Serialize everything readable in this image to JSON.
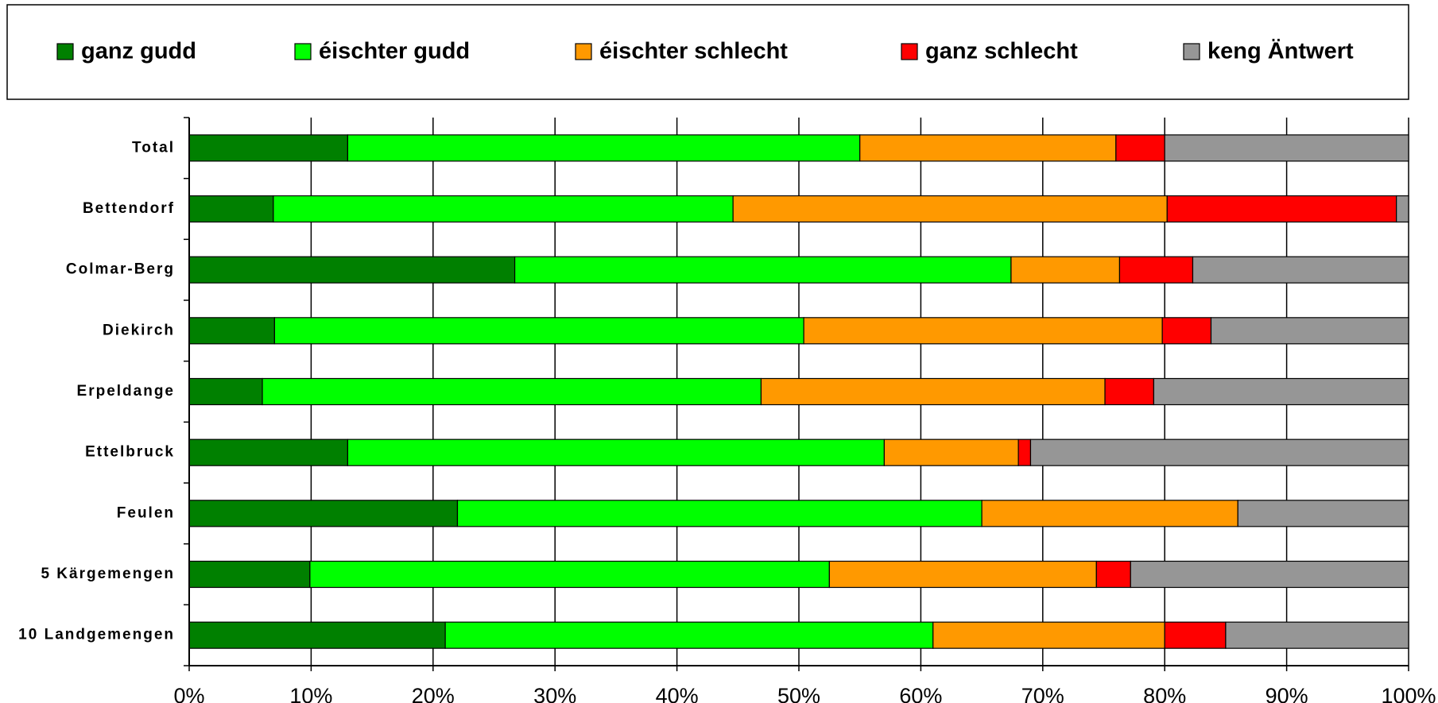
{
  "chart_data": {
    "type": "stacked_barh",
    "categories": [
      "Total",
      "Bettendorf",
      "Colmar-Berg",
      "Diekirch",
      "Erpeldange",
      "Ettelbruck",
      "Feulen",
      "5 Kärgemengen",
      "10 Landgemengen"
    ],
    "series": [
      {
        "name": "ganz gudd",
        "color": "#008000",
        "values": [
          13,
          6.9,
          26.7,
          7,
          6,
          13,
          22,
          9.9,
          21
        ]
      },
      {
        "name": "éischter gudd",
        "color": "#00ff00",
        "values": [
          42,
          37.7,
          40.7,
          43.4,
          40.9,
          44,
          43,
          42.6,
          40
        ]
      },
      {
        "name": "éischter schlecht",
        "color": "#ff9900",
        "values": [
          21,
          35.6,
          8.9,
          29.4,
          28.2,
          11,
          21,
          21.9,
          19
        ]
      },
      {
        "name": "ganz schlecht",
        "color": "#ff0000",
        "values": [
          4,
          18.8,
          6,
          4,
          4,
          1,
          0,
          2.8,
          5
        ]
      },
      {
        "name": "keng Äntwert",
        "color": "#969696",
        "values": [
          20,
          1,
          17.7,
          16.2,
          20.9,
          31,
          14,
          22.8,
          15
        ]
      }
    ],
    "xlim": [
      0,
      100
    ],
    "xticks": [
      {
        "value": 0,
        "label": "0%"
      },
      {
        "value": 10,
        "label": "10%"
      },
      {
        "value": 20,
        "label": "20%"
      },
      {
        "value": 30,
        "label": "30%"
      },
      {
        "value": 40,
        "label": "40%"
      },
      {
        "value": 50,
        "label": "50%"
      },
      {
        "value": 60,
        "label": "60%"
      },
      {
        "value": 70,
        "label": "70%"
      },
      {
        "value": 80,
        "label": "80%"
      },
      {
        "value": 90,
        "label": "90%"
      },
      {
        "value": 100,
        "label": "100%"
      }
    ],
    "grid": true,
    "legend": "top"
  }
}
